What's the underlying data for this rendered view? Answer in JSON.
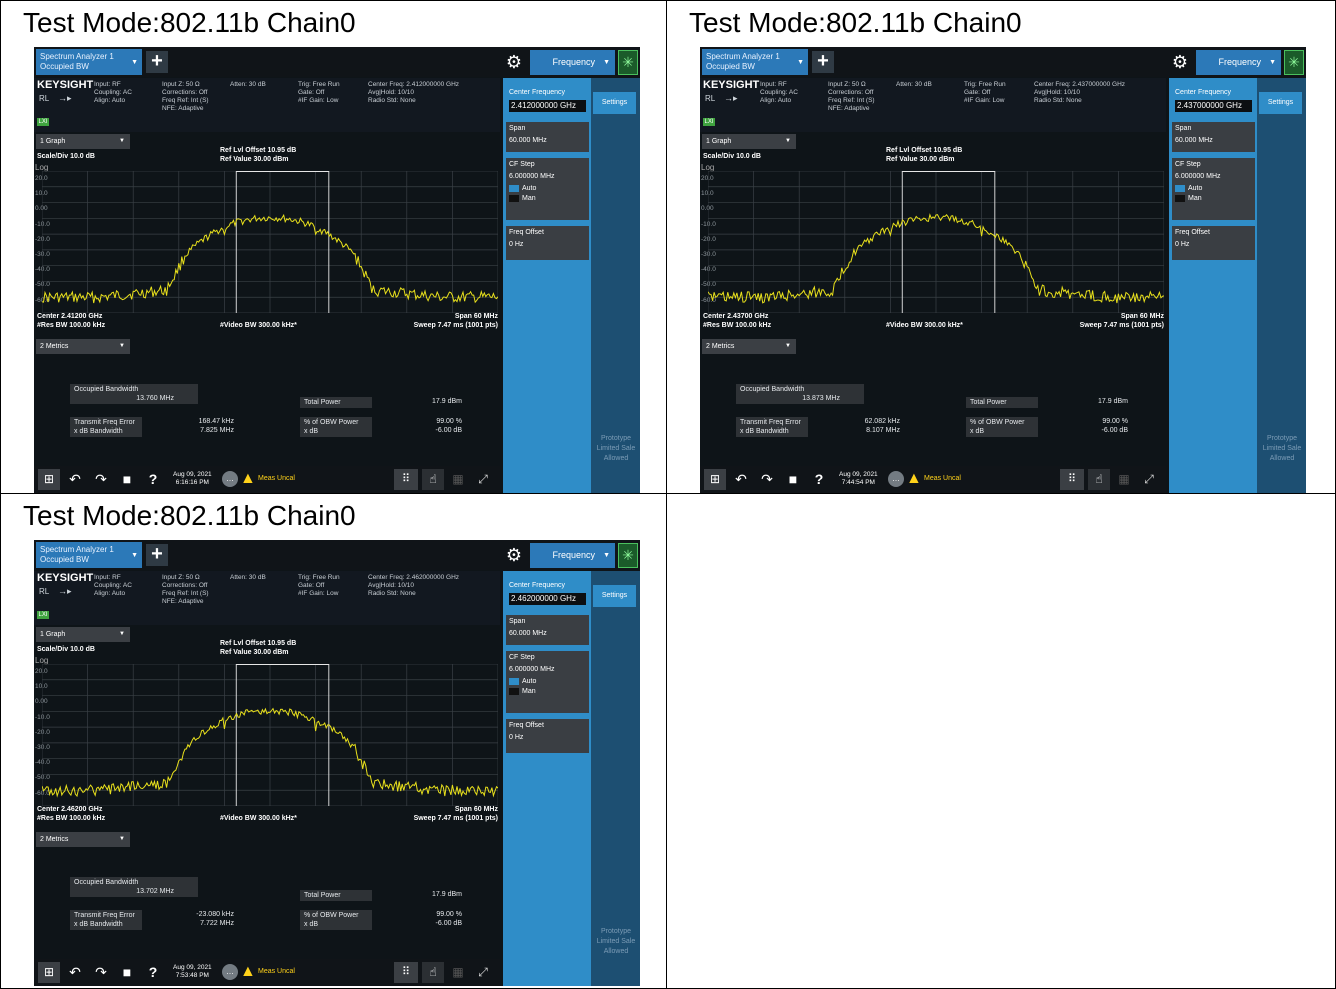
{
  "panels": [
    {
      "title": "Test Mode:802.11b Chain0",
      "tab_line1": "Spectrum Analyzer 1",
      "tab_line2": "Occupied BW",
      "freq_tab": "Frequency",
      "brand": "KEYSIGHT",
      "rl": "RL",
      "lxi": "LXI",
      "info": {
        "col1": "Input: RF\nCoupling: AC\nAlign: Auto",
        "col2": "Input Z: 50 Ω\nCorrections: Off\nFreq Ref: Int (S)\nNFE: Adaptive",
        "col3": "Atten: 30 dB",
        "col4": "Trig: Free Run\nGate: Off\n#IF Gain: Low",
        "col5": "Center Freq: 2.412000000 GHz\nAvg|Hold: 10/10\nRadio Std: None"
      },
      "graph_select": "1 Graph",
      "scale_div": "Scale/Div 10.0 dB",
      "log": "Log",
      "ref_offset": "Ref Lvl Offset 10.95 dB",
      "ref_value": "Ref Value 30.00 dBm",
      "y_ticks": [
        "20.0",
        "10.0",
        "0.00",
        "-10.0",
        "-20.0",
        "-30.0",
        "-40.0",
        "-50.0",
        "-60.0"
      ],
      "center_lbl": "Center 2.41200 GHz",
      "res_bw": "#Res BW 100.00 kHz",
      "video_bw": "#Video BW 300.00 kHz*",
      "span_lbl": "Span 60 MHz",
      "sweep_lbl": "Sweep 7.47 ms (1001 pts)",
      "metrics_select": "2 Metrics",
      "metrics": {
        "occ_bw_label": "Occupied Bandwidth",
        "occ_bw_value": "13.760 MHz",
        "total_power_label": "Total Power",
        "total_power_value": "17.9 dBm",
        "tx_freq_err_label": "Transmit Freq Error",
        "tx_freq_err_value": "168.47 kHz",
        "xdb_bw_label": "x dB Bandwidth",
        "xdb_bw_value": "7.825 MHz",
        "obw_power_label": "% of OBW Power",
        "obw_power_value": "99.00 %",
        "xdb_label": "x dB",
        "xdb_value": "-6.00 dB"
      },
      "right": {
        "center_freq_label": "Center Frequency",
        "center_freq_value": "2.412000000 GHz",
        "settings": "Settings",
        "span_label": "Span",
        "span_value": "60.000 MHz",
        "cf_step_label": "CF Step",
        "cf_step_value": "6.000000 MHz",
        "auto": "Auto",
        "man": "Man",
        "freq_offset_label": "Freq Offset",
        "freq_offset_value": "0 Hz",
        "proto": "Prototype Limited Sale Allowed"
      },
      "date": "Aug 09, 2021",
      "time": "6:16:16 PM",
      "meas_uncal": "Meas Uncal"
    },
    {
      "title": "Test Mode:802.11b Chain0",
      "tab_line1": "Spectrum Analyzer 1",
      "tab_line2": "Occupied BW",
      "freq_tab": "Frequency",
      "brand": "KEYSIGHT",
      "rl": "RL",
      "lxi": "LXI",
      "info": {
        "col1": "Input: RF\nCoupling: AC\nAlign: Auto",
        "col2": "Input Z: 50 Ω\nCorrections: Off\nFreq Ref: Int (S)\nNFE: Adaptive",
        "col3": "Atten: 30 dB",
        "col4": "Trig: Free Run\nGate: Off\n#IF Gain: Low",
        "col5": "Center Freq: 2.437000000 GHz\nAvg|Hold: 10/10\nRadio Std: None"
      },
      "graph_select": "1 Graph",
      "scale_div": "Scale/Div 10.0 dB",
      "log": "Log",
      "ref_offset": "Ref Lvl Offset 10.95 dB",
      "ref_value": "Ref Value 30.00 dBm",
      "y_ticks": [
        "20.0",
        "10.0",
        "0.00",
        "-10.0",
        "-20.0",
        "-30.0",
        "-40.0",
        "-50.0",
        "-60.0"
      ],
      "center_lbl": "Center 2.43700 GHz",
      "res_bw": "#Res BW 100.00 kHz",
      "video_bw": "#Video BW 300.00 kHz*",
      "span_lbl": "Span 60 MHz",
      "sweep_lbl": "Sweep 7.47 ms (1001 pts)",
      "metrics_select": "2 Metrics",
      "metrics": {
        "occ_bw_label": "Occupied Bandwidth",
        "occ_bw_value": "13.873 MHz",
        "total_power_label": "Total Power",
        "total_power_value": "17.9 dBm",
        "tx_freq_err_label": "Transmit Freq Error",
        "tx_freq_err_value": "62.082 kHz",
        "xdb_bw_label": "x dB Bandwidth",
        "xdb_bw_value": "8.107 MHz",
        "obw_power_label": "% of OBW Power",
        "obw_power_value": "99.00 %",
        "xdb_label": "x dB",
        "xdb_value": "-6.00 dB"
      },
      "right": {
        "center_freq_label": "Center Frequency",
        "center_freq_value": "2.437000000 GHz",
        "settings": "Settings",
        "span_label": "Span",
        "span_value": "60.000 MHz",
        "cf_step_label": "CF Step",
        "cf_step_value": "6.000000 MHz",
        "auto": "Auto",
        "man": "Man",
        "freq_offset_label": "Freq Offset",
        "freq_offset_value": "0 Hz",
        "proto": "Prototype Limited Sale Allowed"
      },
      "date": "Aug 09, 2021",
      "time": "7:44:54 PM",
      "meas_uncal": "Meas Uncal"
    },
    {
      "title": "Test Mode:802.11b Chain0",
      "tab_line1": "Spectrum Analyzer 1",
      "tab_line2": "Occupied BW",
      "freq_tab": "Frequency",
      "brand": "KEYSIGHT",
      "rl": "RL",
      "lxi": "LXI",
      "info": {
        "col1": "Input: RF\nCoupling: AC\nAlign: Auto",
        "col2": "Input Z: 50 Ω\nCorrections: Off\nFreq Ref: Int (S)\nNFE: Adaptive",
        "col3": "Atten: 30 dB",
        "col4": "Trig: Free Run\nGate: Off\n#IF Gain: Low",
        "col5": "Center Freq: 2.462000000 GHz\nAvg|Hold: 10/10\nRadio Std: None"
      },
      "graph_select": "1 Graph",
      "scale_div": "Scale/Div 10.0 dB",
      "log": "Log",
      "ref_offset": "Ref Lvl Offset 10.95 dB",
      "ref_value": "Ref Value 30.00 dBm",
      "y_ticks": [
        "20.0",
        "10.0",
        "0.00",
        "-10.0",
        "-20.0",
        "-30.0",
        "-40.0",
        "-50.0",
        "-60.0"
      ],
      "center_lbl": "Center 2.46200 GHz",
      "res_bw": "#Res BW 100.00 kHz",
      "video_bw": "#Video BW 300.00 kHz*",
      "span_lbl": "Span 60 MHz",
      "sweep_lbl": "Sweep 7.47 ms (1001 pts)",
      "metrics_select": "2 Metrics",
      "metrics": {
        "occ_bw_label": "Occupied Bandwidth",
        "occ_bw_value": "13.702 MHz",
        "total_power_label": "Total Power",
        "total_power_value": "17.9 dBm",
        "tx_freq_err_label": "Transmit Freq Error",
        "tx_freq_err_value": "-23.080 kHz",
        "xdb_bw_label": "x dB Bandwidth",
        "xdb_bw_value": "7.722 MHz",
        "obw_power_label": "% of OBW Power",
        "obw_power_value": "99.00 %",
        "xdb_label": "x dB",
        "xdb_value": "-6.00 dB"
      },
      "right": {
        "center_freq_label": "Center Frequency",
        "center_freq_value": "2.462000000 GHz",
        "settings": "Settings",
        "span_label": "Span",
        "span_value": "60.000 MHz",
        "cf_step_label": "CF Step",
        "cf_step_value": "6.000000 MHz",
        "auto": "Auto",
        "man": "Man",
        "freq_offset_label": "Freq Offset",
        "freq_offset_value": "0 Hz",
        "proto": "Prototype Limited Sale Allowed"
      },
      "date": "Aug 09, 2021",
      "time": "7:53:48 PM",
      "meas_uncal": "Meas Uncal"
    }
  ],
  "colors": {
    "trace": "#e8e01c",
    "screen_bg": "#0e1418",
    "accent_blue": "#2f8dc8",
    "warning": "#ffd21a"
  },
  "icons": [
    "plus-icon",
    "gear-icon",
    "dropdown-icon",
    "windows-icon",
    "undo-icon",
    "redo-icon",
    "file-icon",
    "help-icon",
    "chat-icon",
    "warning-icon",
    "grid-icon",
    "cursor-icon",
    "quad-view-icon",
    "expand-icon"
  ]
}
